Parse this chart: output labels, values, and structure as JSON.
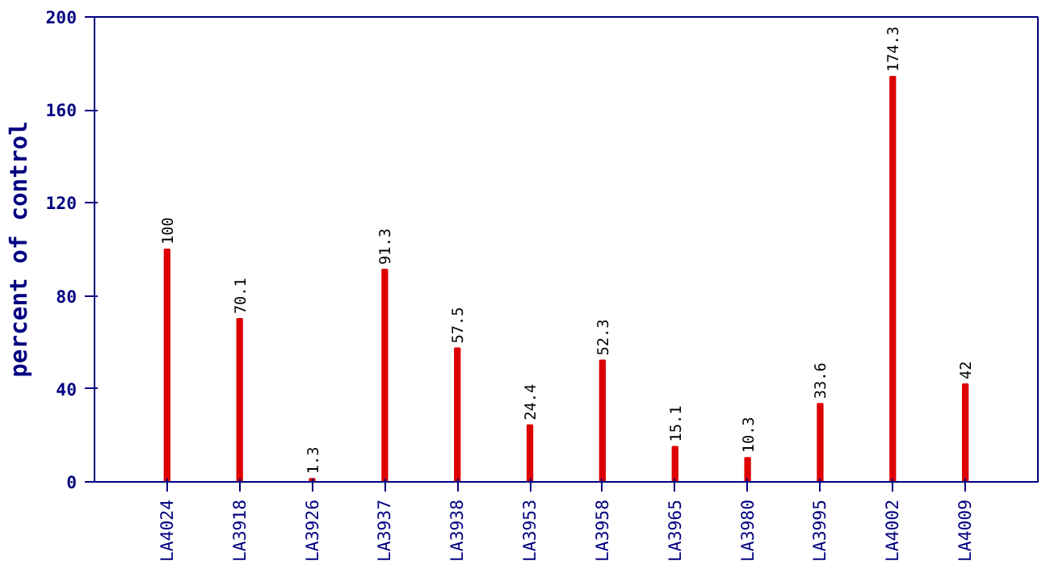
{
  "chart_data": {
    "type": "bar",
    "ylabel": "percent of control",
    "categories": [
      "LA4024",
      "LA3918",
      "LA3926",
      "LA3937",
      "LA3938",
      "LA3953",
      "LA3958",
      "LA3965",
      "LA3980",
      "LA3995",
      "LA4002",
      "LA4009"
    ],
    "values": [
      100,
      70.1,
      1.3,
      91.3,
      57.5,
      24.4,
      52.3,
      15.1,
      10.3,
      33.6,
      174.3,
      42
    ],
    "color": "#dd0000",
    "ylim": [
      0,
      200
    ],
    "yticks": [
      0,
      40,
      80,
      120,
      160,
      200
    ],
    "grid": false,
    "data_labels": true
  }
}
